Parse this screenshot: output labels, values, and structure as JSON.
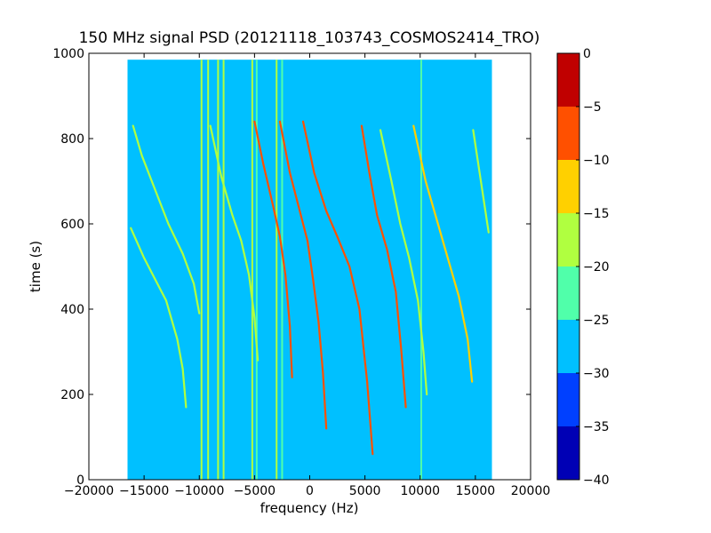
{
  "chart_data": {
    "type": "heatmap",
    "title": "150 MHz signal PSD (20121118_103743_COSMOS2414_TRO)",
    "xlabel": "frequency (Hz)",
    "ylabel": "time (s)",
    "xlim": [
      -20000,
      20000
    ],
    "ylim": [
      0,
      1000
    ],
    "x_ticks": [
      -20000,
      -15000,
      -10000,
      -5000,
      0,
      5000,
      10000,
      15000,
      20000
    ],
    "y_ticks": [
      0,
      200,
      400,
      600,
      800,
      1000
    ],
    "x_tick_labels": [
      "−20000",
      "−15000",
      "−10000",
      "−5000",
      "0",
      "5000",
      "10000",
      "15000",
      "20000"
    ],
    "y_tick_labels": [
      "0",
      "200",
      "400",
      "600",
      "800",
      "1000"
    ],
    "data_extent": {
      "x": [
        -16500,
        16500
      ],
      "y": [
        0,
        985
      ]
    },
    "background_level": -27.5,
    "colormap": "jet",
    "colorbar": {
      "levels": [
        -40,
        -35,
        -30,
        -25,
        -20,
        -15,
        -10,
        -5,
        0
      ],
      "tick_labels": [
        "−40",
        "−35",
        "−30",
        "−25",
        "−20",
        "−15",
        "−10",
        "−5",
        "0"
      ],
      "colors": [
        "#0000b5",
        "#0040ff",
        "#00c0ff",
        "#50ffaa",
        "#b0ff40",
        "#ffd000",
        "#ff5000",
        "#c00000"
      ]
    },
    "vertical_lines": [
      {
        "x": -9800,
        "level": -17.5
      },
      {
        "x": -9200,
        "level": -17.5
      },
      {
        "x": -8300,
        "level": -17.5
      },
      {
        "x": -7800,
        "level": -17.5
      },
      {
        "x": -5200,
        "level": -17.5
      },
      {
        "x": -4800,
        "level": -22.5
      },
      {
        "x": -3000,
        "level": -17.5
      },
      {
        "x": -2500,
        "level": -22.5
      },
      {
        "x": 10100,
        "level": -22.5
      }
    ],
    "series": [
      {
        "x": [
          -16200,
          -15000,
          -13800,
          -13000,
          -12000,
          -11500,
          -11200
        ],
        "y": [
          590,
          520,
          460,
          420,
          330,
          260,
          170
        ],
        "level": -17.5
      },
      {
        "x": [
          -16000,
          -15200,
          -14000,
          -12800,
          -11500,
          -10500,
          -10000
        ],
        "y": [
          830,
          760,
          680,
          600,
          530,
          460,
          390
        ],
        "level": -17.5
      },
      {
        "x": [
          -9000,
          -8000,
          -7000,
          -6200,
          -5500,
          -5000,
          -4700
        ],
        "y": [
          830,
          710,
          620,
          560,
          480,
          380,
          280
        ],
        "level": -17.5
      },
      {
        "x": [
          -5000,
          -4200,
          -3300,
          -2700,
          -2200,
          -1800,
          -1600
        ],
        "y": [
          840,
          740,
          640,
          570,
          480,
          360,
          240
        ],
        "level": -7.5
      },
      {
        "x": [
          -2700,
          -1800,
          -900,
          -200,
          300,
          800,
          1200,
          1500
        ],
        "y": [
          840,
          720,
          630,
          560,
          470,
          370,
          250,
          120
        ],
        "level": -7.5
      },
      {
        "x": [
          -600,
          400,
          1500,
          2500,
          3600,
          4500,
          5200,
          5700
        ],
        "y": [
          840,
          720,
          630,
          570,
          500,
          400,
          230,
          60
        ],
        "level": -7.5
      },
      {
        "x": [
          4700,
          5400,
          6100,
          7000,
          7800,
          8300,
          8700
        ],
        "y": [
          830,
          720,
          620,
          540,
          440,
          300,
          170
        ],
        "level": -7.5
      },
      {
        "x": [
          6400,
          7400,
          8200,
          9000,
          9800,
          10300,
          10600
        ],
        "y": [
          820,
          700,
          600,
          520,
          420,
          300,
          200
        ],
        "level": -17.5
      },
      {
        "x": [
          9400,
          10500,
          11500,
          12500,
          13500,
          14300,
          14700
        ],
        "y": [
          830,
          700,
          610,
          520,
          430,
          330,
          230
        ],
        "level": -12.5
      },
      {
        "x": [
          14800,
          15500,
          16200
        ],
        "y": [
          820,
          700,
          580
        ],
        "level": -17.5
      }
    ]
  }
}
